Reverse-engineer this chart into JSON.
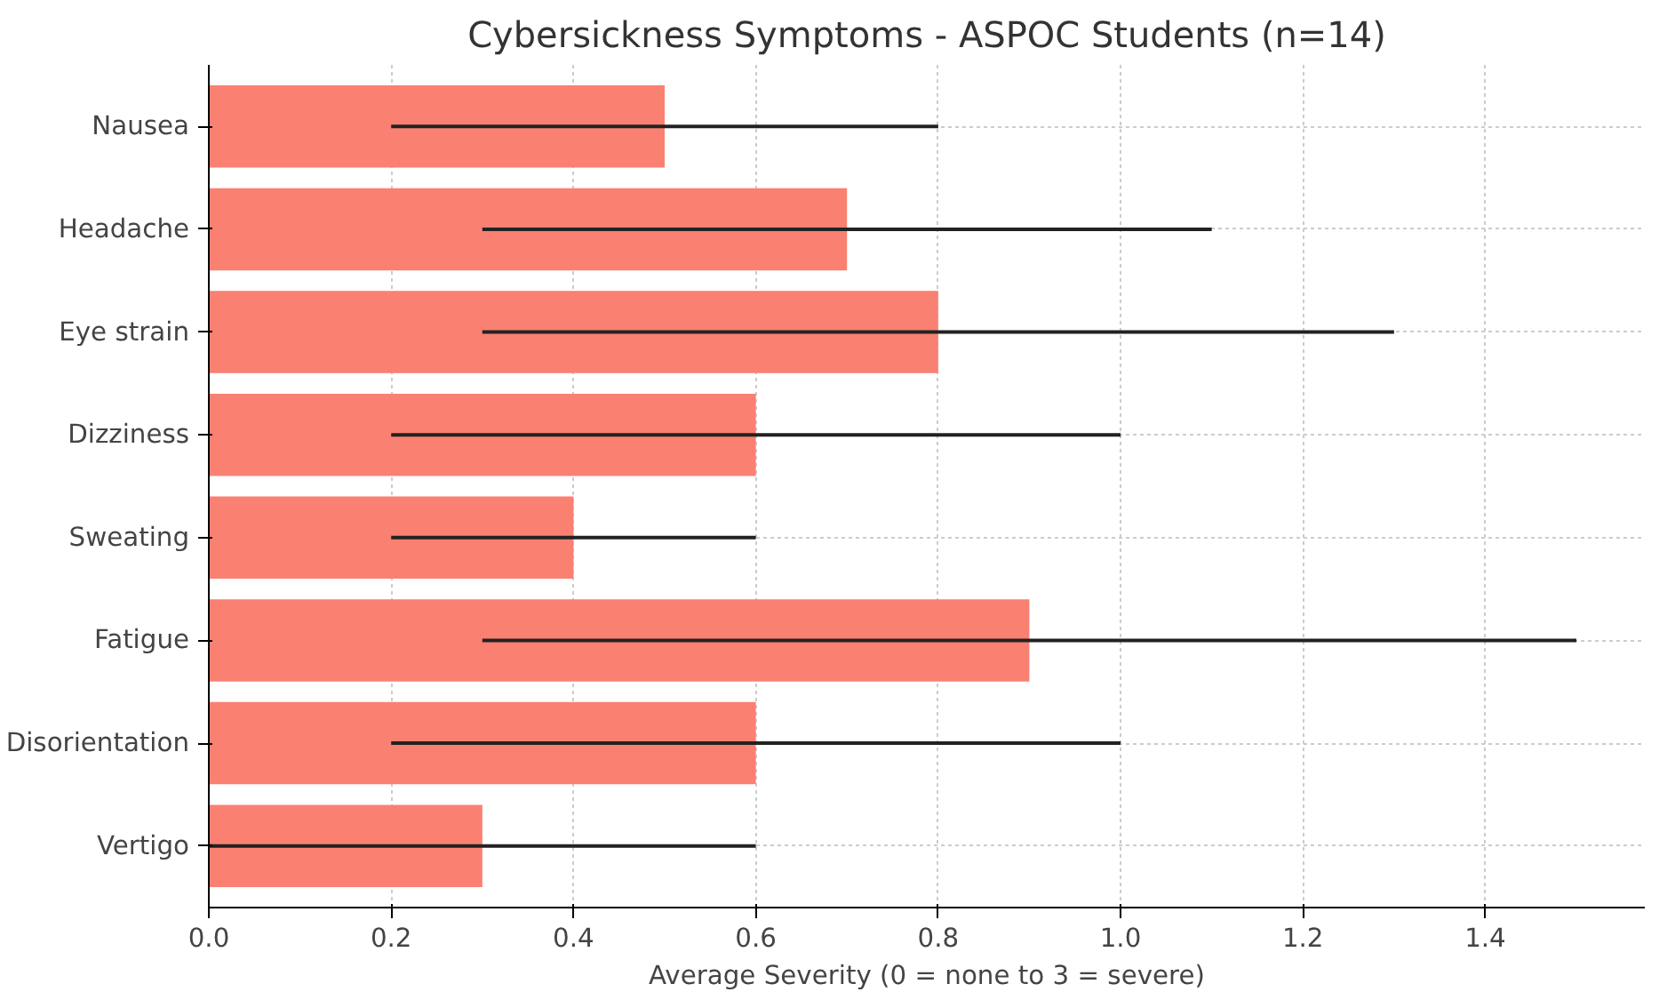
{
  "chart_data": {
    "type": "bar",
    "orientation": "horizontal",
    "title": "Cybersickness Symptoms - ASPOC Students (n=14)",
    "xlabel": "Average Severity (0 = none to 3 = severe)",
    "categories": [
      "Nausea",
      "Headache",
      "Eye strain",
      "Dizziness",
      "Sweating",
      "Fatigue",
      "Disorientation",
      "Vertigo"
    ],
    "values": [
      0.5,
      0.7,
      0.8,
      0.6,
      0.4,
      0.9,
      0.6,
      0.3
    ],
    "errors": [
      0.3,
      0.4,
      0.5,
      0.4,
      0.2,
      0.6,
      0.4,
      0.3
    ],
    "color": "#fa8072",
    "xlim": [
      0,
      1.575
    ],
    "xticks": [
      {
        "value": 0,
        "label": "0.0"
      },
      0.2,
      0.4,
      0.6,
      0.8,
      {
        "value": 1,
        "label": "1.0"
      },
      1.2,
      1.4
    ],
    "grid": true
  }
}
